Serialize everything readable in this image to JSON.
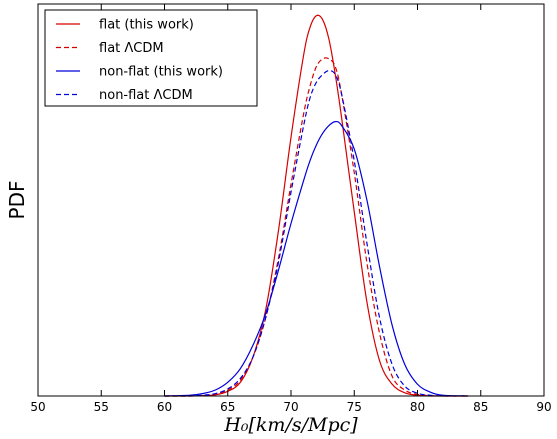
{
  "chart_data": {
    "type": "line",
    "title": "",
    "xlabel": "H₀[km/s/Mpc]",
    "ylabel": "PDF",
    "xlim": [
      50,
      90
    ],
    "ylim": [
      0,
      1.0
    ],
    "xticks": [
      50,
      55,
      60,
      65,
      70,
      75,
      80,
      85,
      90
    ],
    "yticks": [],
    "grid": false,
    "legend_position": "top-left",
    "x": [
      60,
      62,
      63,
      64,
      65,
      66,
      67,
      68,
      69,
      70,
      71,
      71.5,
      72,
      72.5,
      73,
      73.5,
      74,
      75,
      76,
      77,
      78,
      79,
      80,
      81,
      82,
      84
    ],
    "series": [
      {
        "name": "flat (this work)",
        "color": "#d60000",
        "dash": "solid",
        "values": [
          0,
          0,
          0.001,
          0.003,
          0.012,
          0.035,
          0.1,
          0.22,
          0.42,
          0.66,
          0.87,
          0.94,
          0.97,
          0.96,
          0.91,
          0.82,
          0.71,
          0.47,
          0.24,
          0.09,
          0.03,
          0.008,
          0.002,
          0,
          0,
          0
        ]
      },
      {
        "name": "flat ΛCDM",
        "color": "#d60000",
        "dash": "dashed",
        "values": [
          0,
          0,
          0.001,
          0.004,
          0.015,
          0.04,
          0.1,
          0.2,
          0.35,
          0.54,
          0.72,
          0.79,
          0.84,
          0.86,
          0.86,
          0.84,
          0.77,
          0.57,
          0.34,
          0.16,
          0.05,
          0.015,
          0.004,
          0.001,
          0,
          0
        ]
      },
      {
        "name": "non-flat (this work)",
        "color": "#0000dc",
        "dash": "solid",
        "values": [
          0,
          0.002,
          0.006,
          0.015,
          0.035,
          0.07,
          0.13,
          0.21,
          0.32,
          0.44,
          0.55,
          0.6,
          0.64,
          0.67,
          0.69,
          0.7,
          0.69,
          0.63,
          0.5,
          0.33,
          0.18,
          0.08,
          0.03,
          0.01,
          0.002,
          0
        ]
      },
      {
        "name": "non-flat ΛCDM",
        "color": "#0000dc",
        "dash": "dashed",
        "values": [
          0,
          0,
          0.002,
          0.006,
          0.018,
          0.045,
          0.1,
          0.2,
          0.34,
          0.52,
          0.69,
          0.76,
          0.8,
          0.82,
          0.83,
          0.82,
          0.77,
          0.6,
          0.39,
          0.2,
          0.08,
          0.025,
          0.007,
          0.002,
          0,
          0
        ]
      }
    ]
  }
}
